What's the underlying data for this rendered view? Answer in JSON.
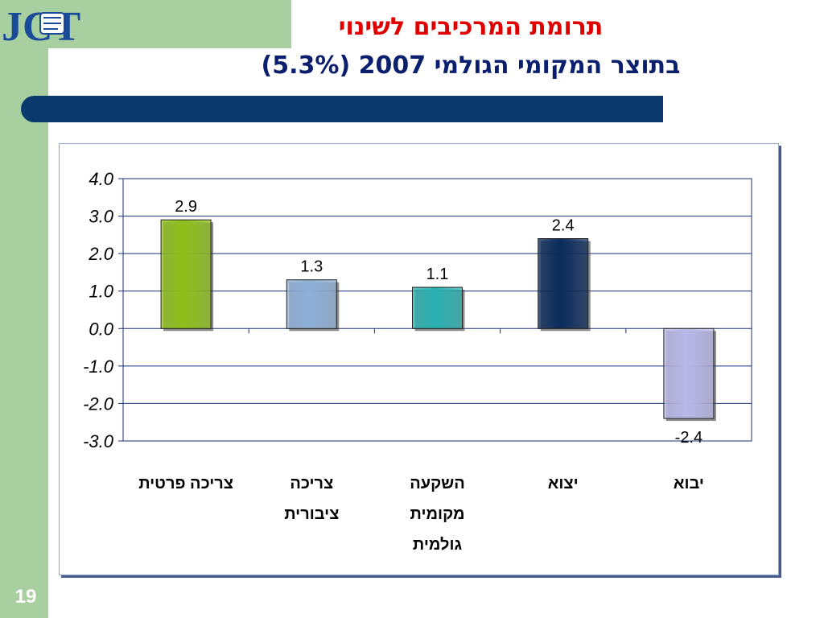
{
  "slide": {
    "logo_text": "JCT",
    "title_line1": "תרומת המרכיבים לשינוי",
    "title_line2": "בתוצר המקומי הגולמי 2007 (5.3%)",
    "page_number": "19"
  },
  "colors": {
    "sidebar": "#a8cf9f",
    "title_red": "#e00000",
    "title_blue": "#0a1f6e",
    "band_blue": "#0a3a6e"
  },
  "chart_data": {
    "type": "bar",
    "categories": [
      [
        "צריכה פרטית"
      ],
      [
        "צריכה",
        "ציבורית"
      ],
      [
        "השקעה",
        "מקומית",
        "גולמית"
      ],
      [
        "יצוא"
      ],
      [
        "יבוא"
      ]
    ],
    "values": [
      2.9,
      1.3,
      1.1,
      2.4,
      -2.4
    ],
    "data_labels": [
      "2.9",
      "1.3",
      "1.1",
      "2.4",
      "-2.4"
    ],
    "bar_colors": [
      "#8fbf1a",
      "#8fb0d8",
      "#2ab0b0",
      "#0a2a5a",
      "#b8b8e8"
    ],
    "ylim": [
      -3,
      4
    ],
    "yticks": [
      "4.0",
      "3.0",
      "2.0",
      "1.0",
      "0.0",
      "-1.0",
      "-2.0",
      "-3.0"
    ],
    "grid": true,
    "legend": "none"
  }
}
